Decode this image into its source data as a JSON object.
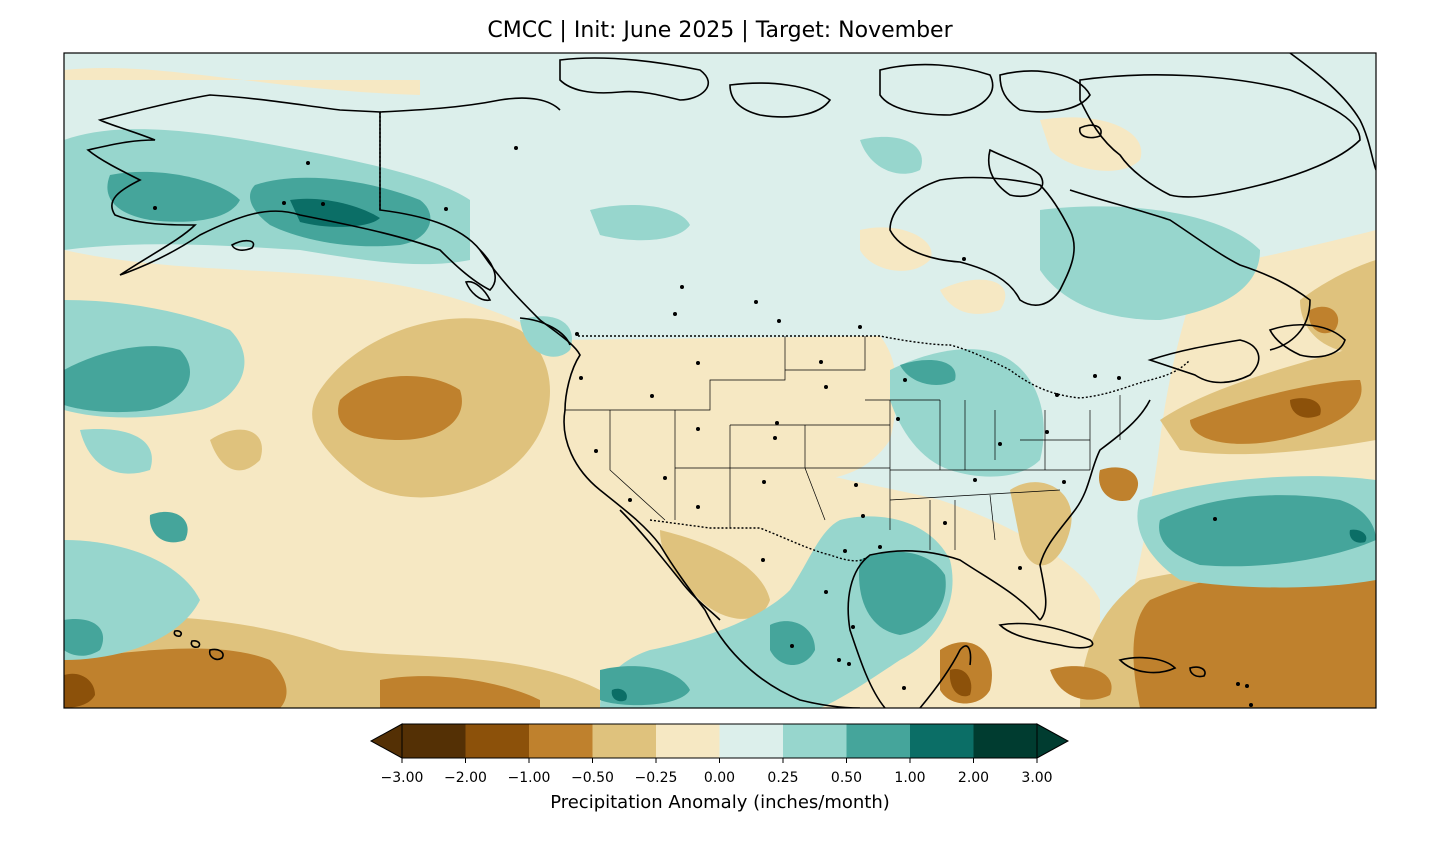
{
  "title": "CMCC | Init: June 2025 | Target: November",
  "colorbar": {
    "label": "Precipitation Anomaly (inches/month)",
    "ticks": [
      "−3.00",
      "−2.00",
      "−1.00",
      "−0.50",
      "−0.25",
      "0.00",
      "0.25",
      "0.50",
      "1.00",
      "2.00",
      "3.00"
    ],
    "colors": [
      "#543005",
      "#8c510a",
      "#bf812d",
      "#dfc27d",
      "#f6e8c3",
      "#dcefeb",
      "#97d6cd",
      "#45a59b",
      "#0b6e66",
      "#003c30"
    ],
    "extend_low": "#543005",
    "extend_high": "#003c30"
  },
  "palette": {
    "neutral_dry": "#f6e8c3",
    "neutral_wet": "#dcefeb",
    "coastline": "#000000"
  }
}
